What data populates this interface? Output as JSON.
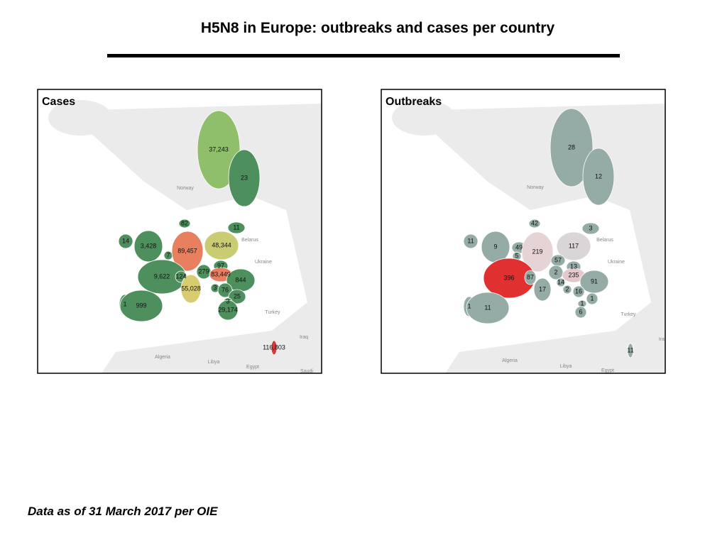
{
  "title": "H5N8 in Europe: outbreaks and cases per country",
  "footnote": "Data as of 31 March 2017 per OIE",
  "panels": [
    {
      "title": "Cases",
      "labels": [
        {
          "text": "37,243",
          "color": "#8fbf6a"
        },
        {
          "text": "23",
          "color": "#4e8f5e"
        },
        {
          "text": "82",
          "color": "#4e8f5e"
        },
        {
          "text": "11",
          "color": "#4e8f5e"
        },
        {
          "text": "14",
          "color": "#4e8f5e"
        },
        {
          "text": "3,428",
          "color": "#4e8f5e"
        },
        {
          "text": "7",
          "color": "#4e8f5e"
        },
        {
          "text": "89,457",
          "color": "#e8805f"
        },
        {
          "text": "48,344",
          "color": "#c9cc72"
        },
        {
          "text": "97",
          "color": "#4e8f5e"
        },
        {
          "text": "279",
          "color": "#4e8f5e"
        },
        {
          "text": "83,449",
          "color": "#e8805f"
        },
        {
          "text": "844",
          "color": "#4e8f5e"
        },
        {
          "text": "9,622",
          "color": "#4e8f5e"
        },
        {
          "text": "124",
          "color": "#4e8f5e"
        },
        {
          "text": "55,028",
          "color": "#d8cc70"
        },
        {
          "text": "3",
          "color": "#4e8f5e"
        },
        {
          "text": "76",
          "color": "#4e8f5e"
        },
        {
          "text": "25",
          "color": "#4e8f5e"
        },
        {
          "text": "3",
          "color": "#4e8f5e"
        },
        {
          "text": "1",
          "color": "#4e8f5e"
        },
        {
          "text": "999",
          "color": "#4e8f5e"
        },
        {
          "text": "29,174",
          "color": "#4e8f5e"
        },
        {
          "text": "116,803",
          "color": "#d23a3a"
        }
      ],
      "places": [
        "Norway",
        "Belarus",
        "Ukraine",
        "Turkey",
        "Iraq",
        "Algeria",
        "Libya",
        "Egypt",
        "Saudi"
      ]
    },
    {
      "title": "Outbreaks",
      "labels": [
        {
          "text": "28",
          "color": "#95aba5"
        },
        {
          "text": "12",
          "color": "#95aba5"
        },
        {
          "text": "42",
          "color": "#95aba5"
        },
        {
          "text": "3",
          "color": "#95aba5"
        },
        {
          "text": "11",
          "color": "#95aba5"
        },
        {
          "text": "9",
          "color": "#95aba5"
        },
        {
          "text": "49",
          "color": "#95aba5"
        },
        {
          "text": "5",
          "color": "#95aba5"
        },
        {
          "text": "219",
          "color": "#e5d3d5"
        },
        {
          "text": "117",
          "color": "#dad5d6"
        },
        {
          "text": "57",
          "color": "#95aba5"
        },
        {
          "text": "13",
          "color": "#95aba5"
        },
        {
          "text": "2",
          "color": "#95aba5"
        },
        {
          "text": "235",
          "color": "#e5c8cc"
        },
        {
          "text": "396",
          "color": "#e03030"
        },
        {
          "text": "87",
          "color": "#95aba5"
        },
        {
          "text": "14",
          "color": "#95aba5"
        },
        {
          "text": "91",
          "color": "#95aba5"
        },
        {
          "text": "17",
          "color": "#95aba5"
        },
        {
          "text": "2",
          "color": "#95aba5"
        },
        {
          "text": "16",
          "color": "#95aba5"
        },
        {
          "text": "1",
          "color": "#95aba5"
        },
        {
          "text": "1",
          "color": "#95aba5"
        },
        {
          "text": "6",
          "color": "#95aba5"
        },
        {
          "text": "1",
          "color": "#95aba5"
        },
        {
          "text": "11",
          "color": "#95aba5"
        },
        {
          "text": "11",
          "color": "#95aba5"
        }
      ],
      "places": [
        "Norway",
        "Belarus",
        "Ukraine",
        "Turkey",
        "Ira",
        "Algeria",
        "Libya",
        "Egypt"
      ]
    }
  ]
}
